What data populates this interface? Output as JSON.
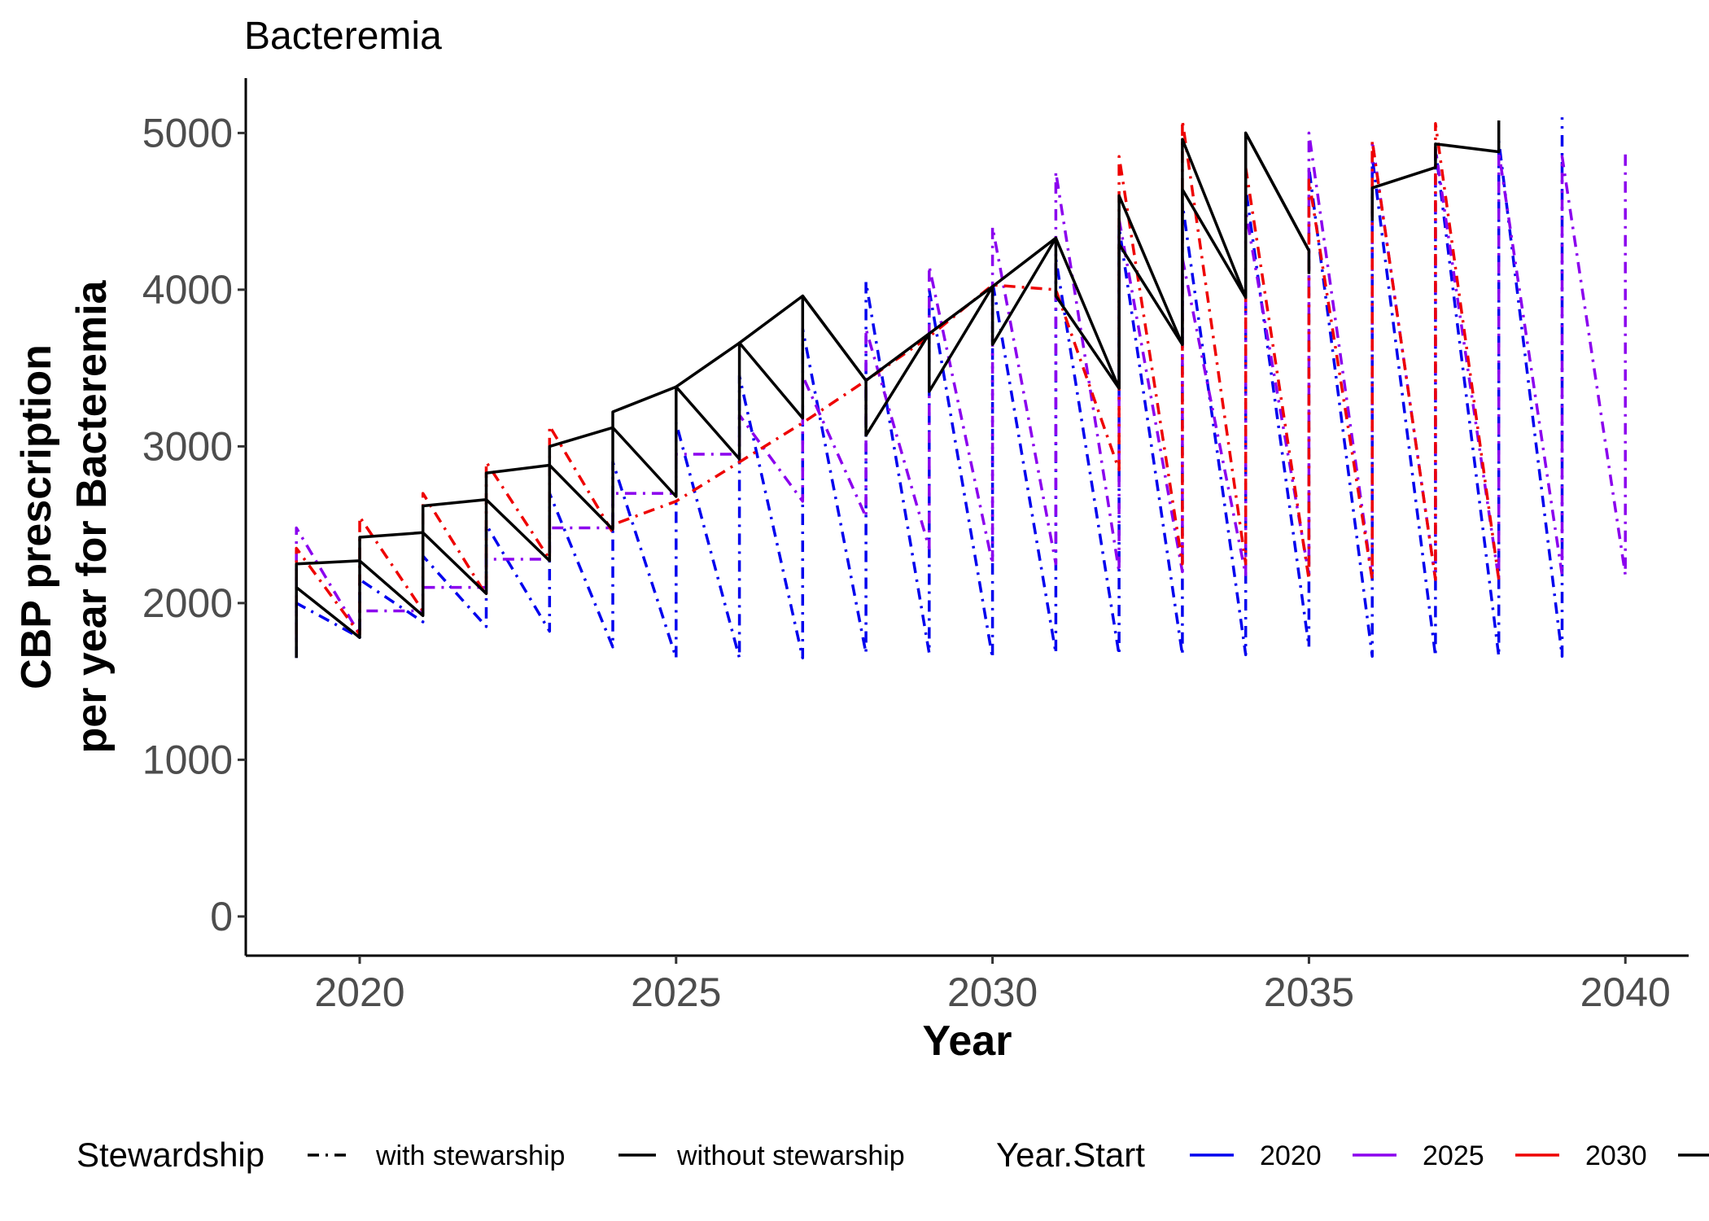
{
  "chart_data": {
    "type": "line",
    "title": "Bacteremia",
    "xlabel": "Year",
    "ylabel_lines": [
      "CBP prescription",
      "per year for Bacteremia"
    ],
    "xlim": [
      2018.2,
      2041.0
    ],
    "ylim": [
      -250,
      5350
    ],
    "x_ticks": [
      2020,
      2025,
      2030,
      2035,
      2040
    ],
    "y_ticks": [
      0,
      1000,
      2000,
      3000,
      4000,
      5000
    ],
    "grid": false,
    "legend_position": "bottom",
    "legend": {
      "stewardship": {
        "title": "Stewardship",
        "items": [
          {
            "label": "with stewarship",
            "dash": "dotdash"
          },
          {
            "label": "without stewarship",
            "dash": "solid"
          }
        ]
      },
      "year_start": {
        "title": "Year.Start",
        "items": [
          {
            "label": "2020",
            "color": "#0000EE"
          },
          {
            "label": "2025",
            "color": "#8B00EE"
          },
          {
            "label": "2030",
            "color": "#EE0000"
          },
          {
            "label": "",
            "color": "#000000"
          }
        ]
      }
    },
    "series": [
      {
        "start": "2020",
        "stewardship": "with stewarship",
        "color": "#0000EE",
        "dash": "dotdash",
        "x": [
          2019,
          2019,
          2020,
          2020,
          2021,
          2021,
          2022,
          2022,
          2023,
          2023,
          2024,
          2024,
          2025,
          2025,
          2026,
          2026,
          2027,
          2027,
          2028,
          2028,
          2029,
          2029,
          2030,
          2030,
          2031,
          2031,
          2032,
          2032,
          2033,
          2033,
          2034,
          2034,
          2035,
          2035,
          2036,
          2036,
          2037,
          2037,
          2038,
          2038,
          2039,
          2039
        ],
        "y": [
          1650,
          2000,
          1780,
          2150,
          1880,
          2300,
          1850,
          2500,
          1820,
          2700,
          1720,
          2900,
          1650,
          3150,
          1650,
          3450,
          1650,
          3750,
          1680,
          4050,
          1680,
          4000,
          1650,
          4050,
          1680,
          4200,
          1670,
          4400,
          1670,
          4550,
          1670,
          4650,
          1720,
          4780,
          1660,
          4850,
          1660,
          4900,
          1660,
          4950,
          1660,
          5100
        ]
      },
      {
        "start": "2025",
        "stewardship": "with stewarship",
        "color": "#8B00EE",
        "dash": "dotdash",
        "x": [
          2019,
          2019,
          2020,
          2020,
          2021,
          2021,
          2022,
          2022,
          2023,
          2023,
          2024,
          2024,
          2025,
          2025,
          2026,
          2026,
          2027,
          2027,
          2028,
          2028,
          2029,
          2029,
          2030,
          2030,
          2031,
          2031,
          2032,
          2032,
          2033,
          2033,
          2034,
          2034,
          2035,
          2035,
          2036,
          2036,
          2037,
          2037,
          2038,
          2038,
          2039,
          2039,
          2040,
          2040
        ],
        "y": [
          1750,
          2480,
          1800,
          1950,
          1950,
          2100,
          2100,
          2280,
          2280,
          2480,
          2480,
          2700,
          2700,
          2950,
          2950,
          3200,
          2650,
          3450,
          2550,
          3750,
          2350,
          4150,
          2250,
          4400,
          2250,
          4750,
          2200,
          4450,
          2200,
          4200,
          2180,
          4500,
          2180,
          5000,
          2150,
          4950,
          2150,
          4900,
          2150,
          4880,
          2180,
          4850,
          2180,
          4900
        ]
      },
      {
        "start": "2030",
        "stewardship": "with stewarship",
        "color": "#EE0000",
        "dash": "dotdash",
        "x": [
          2019,
          2019,
          2020,
          2020,
          2021,
          2021,
          2022,
          2022,
          2023,
          2023,
          2024,
          2024,
          2025,
          2025,
          2026,
          2026,
          2027,
          2027,
          2028,
          2028,
          2029,
          2029,
          2030,
          2030,
          2031,
          2031,
          2032,
          2032,
          2033,
          2033,
          2034,
          2034,
          2035,
          2035,
          2036,
          2036,
          2037,
          2037,
          2038
        ],
        "y": [
          1800,
          2350,
          1800,
          2550,
          1950,
          2700,
          2050,
          2900,
          2280,
          3130,
          2450,
          2500,
          2650,
          2650,
          2900,
          2900,
          3150,
          3150,
          3420,
          3420,
          3700,
          3700,
          4030,
          4030,
          4000,
          4000,
          2850,
          4850,
          2250,
          5080,
          2250,
          4780,
          2150,
          4700,
          2150,
          4950,
          2150,
          5060,
          2150
        ]
      },
      {
        "start": "",
        "stewardship": "without stewarship",
        "color": "#000000",
        "dash": "solid",
        "x": [
          2019,
          2019,
          2020,
          2020,
          2021,
          2021,
          2022,
          2022,
          2023,
          2023,
          2024,
          2024,
          2025,
          2025,
          2026,
          2026,
          2027,
          2027,
          2028,
          2028,
          2029,
          2029,
          2030,
          2030,
          2031,
          2031,
          2032,
          2032,
          2033,
          2033,
          2034,
          2034,
          2035,
          2035
        ],
        "y": [
          1650,
          2100,
          1780,
          2270,
          1920,
          2450,
          2060,
          2660,
          2270,
          2880,
          2470,
          3120,
          2680,
          3380,
          2920,
          3660,
          3180,
          3960,
          3420,
          3070,
          3720,
          3350,
          4020,
          3650,
          4330,
          3960,
          3370,
          4290,
          3650,
          4640,
          3950,
          5000,
          4250,
          4100
        ]
      },
      {
        "start": "",
        "stewardship": "without stewarship",
        "color": "#000000",
        "dash": "solid",
        "x": [
          2019,
          2019,
          2020,
          2020,
          2021,
          2021,
          2022,
          2022,
          2023,
          2023,
          2024,
          2024,
          2025,
          2025,
          2026,
          2026,
          2027,
          2027,
          2028,
          2028,
          2029,
          2029,
          2030,
          2030,
          2031,
          2031,
          2032,
          2032,
          2033,
          2033,
          2034,
          2034,
          2035,
          2035
        ],
        "y": [
          2100,
          2250,
          2270,
          2420,
          2450,
          2620,
          2660,
          2830,
          2880,
          3000,
          3120,
          3220,
          3380,
          3380,
          3660,
          3660,
          3960,
          3960,
          3420,
          3420,
          3720,
          3720,
          4020,
          4020,
          4330,
          4330,
          3370,
          4600,
          3650,
          4960,
          3950,
          5000,
          4250,
          4250
        ]
      },
      {
        "start": "",
        "stewardship": "without stewarship",
        "color": "#000000",
        "dash": "solid",
        "x": [
          2036,
          2036,
          2037,
          2037,
          2038,
          2038
        ],
        "y": [
          4440,
          4650,
          4780,
          4930,
          4880,
          5080
        ]
      }
    ]
  }
}
